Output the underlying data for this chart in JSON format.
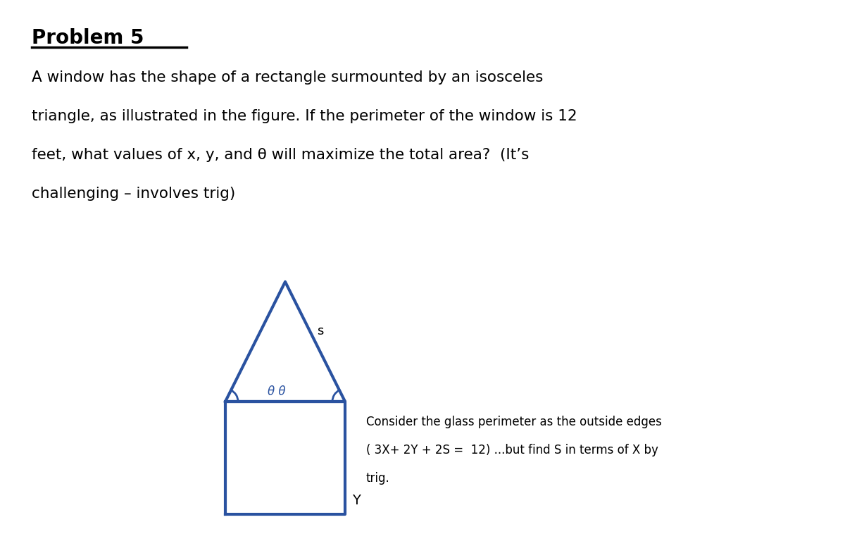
{
  "title": "Problem 5",
  "bg_color": "#ffffff",
  "text_color": "#000000",
  "shape_color": "#2a52a0",
  "problem_text_lines": [
    "A window has the shape of a rectangle surmounted by an isosceles",
    "triangle, as illustrated in the figure. If the perimeter of the window is 12",
    "feet, what values of x, y, and θ will maximize the total area?  (It’s",
    "challenging – involves trig)"
  ],
  "note_lines": [
    "Consider the glass perimeter as the outside edges",
    "( 3X+ 2Y + 2S =  12) ...but find S in terms of X by",
    "trig."
  ],
  "label_s": "s",
  "label_y": "Y",
  "label_theta": "θ θ",
  "fig_width": 12.0,
  "fig_height": 7.85
}
